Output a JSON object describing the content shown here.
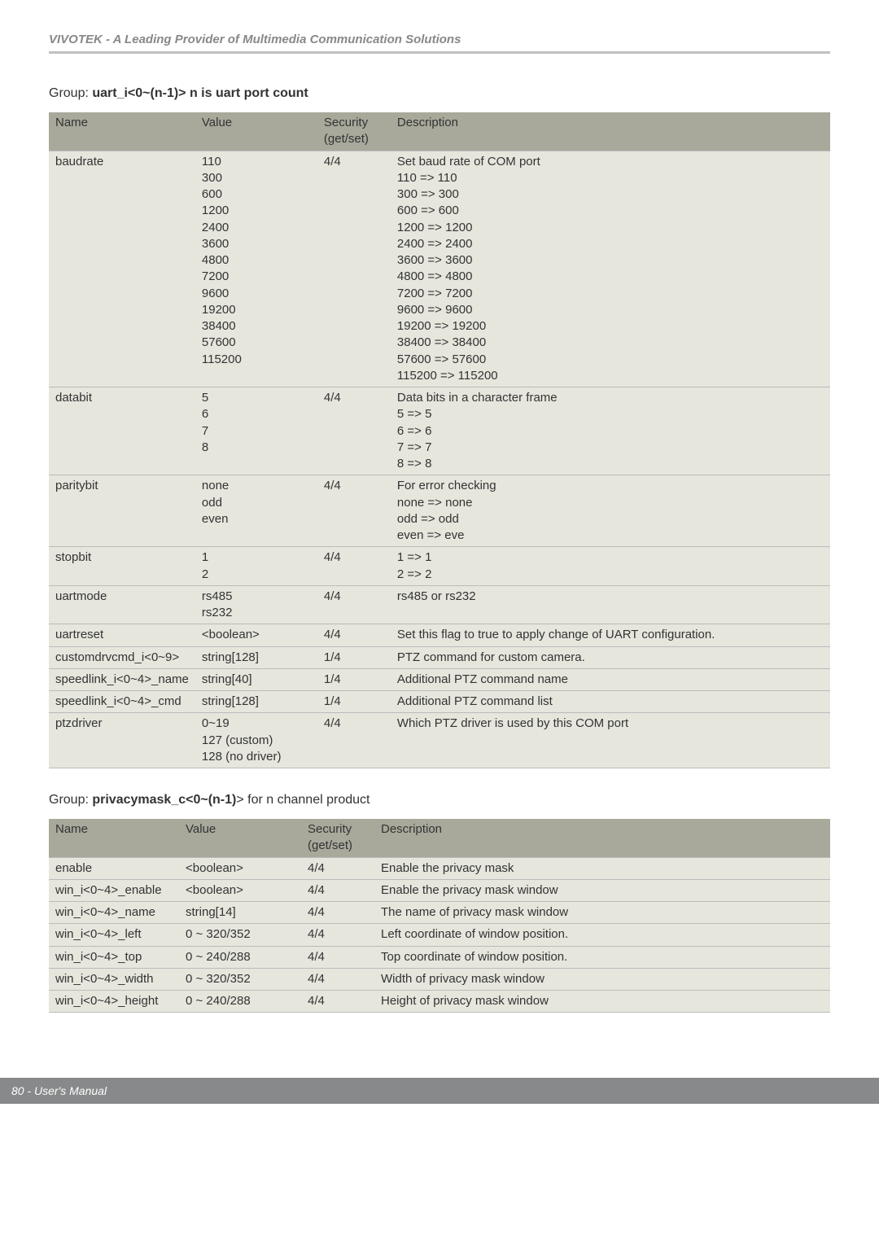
{
  "header": {
    "title": "VIVOTEK - A Leading Provider of Multimedia Communication Solutions"
  },
  "footer": {
    "text": "80 - User's Manual"
  },
  "tables": {
    "uart": {
      "title_prefix": "Group: ",
      "title_bold": "uart_i<0~(n-1)> n is uart port count",
      "title_suffix": "",
      "headers": {
        "name": "Name",
        "value": "Value",
        "security": "Security\n(get/set)",
        "description": "Description"
      },
      "rows": [
        {
          "name": "baudrate",
          "value": "110\n300\n600\n1200\n2400\n3600\n4800\n7200\n9600\n19200\n38400\n57600\n115200",
          "security": "4/4",
          "description": "Set baud rate of COM port\n 110 => 110\n 300 => 300\n 600 => 600\n 1200 => 1200\n 2400 => 2400\n 3600 => 3600\n 4800 => 4800\n 7200 => 7200\n 9600 => 9600\n 19200 => 19200\n 38400 => 38400\n 57600 => 57600\n 115200 => 115200"
        },
        {
          "name": "databit",
          "value": "5\n6\n7\n8",
          "security": "4/4",
          "description": "Data bits in a character frame\n 5 => 5\n 6 => 6\n 7 => 7\n 8 => 8"
        },
        {
          "name": "paritybit",
          "value": "none\nodd\neven",
          "security": "4/4",
          "description": "For error checking\n none => none\n odd => odd\n even => eve"
        },
        {
          "name": "stopbit",
          "value": "1\n2",
          "security": "4/4",
          "description": " 1 => 1\n 2 => 2"
        },
        {
          "name": "uartmode",
          "value": "rs485\nrs232",
          "security": "4/4",
          "description": "rs485 or rs232"
        },
        {
          "name": "uartreset",
          "value": "<boolean>",
          "security": "4/4",
          "description": "Set this flag to true to apply change of UART configuration."
        },
        {
          "name": "customdrvcmd_i<0~9>",
          "value": "string[128]",
          "security": "1/4",
          "description": "PTZ command for custom camera."
        },
        {
          "name": "speedlink_i<0~4>_name",
          "value": "string[40]",
          "security": "1/4",
          "description": "Additional PTZ command name"
        },
        {
          "name": "speedlink_i<0~4>_cmd",
          "value": "string[128]",
          "security": "1/4",
          "description": "Additional PTZ command list"
        },
        {
          "name": "ptzdriver",
          "value": "0~19\n127 (custom)\n128 (no driver)",
          "security": "4/4",
          "description": "Which PTZ driver is used by this COM port"
        }
      ]
    },
    "privacymask": {
      "title_prefix": "Group: ",
      "title_bold": "privacymask_c<0~(n-1)",
      "title_suffix": "> for n channel product",
      "headers": {
        "name": "Name",
        "value": "Value",
        "security": "Security\n(get/set)",
        "description": "Description"
      },
      "rows": [
        {
          "name": "enable",
          "value": "<boolean>",
          "security": "4/4",
          "description": "Enable the privacy mask"
        },
        {
          "name": "win_i<0~4>_enable",
          "value": "<boolean>",
          "security": "4/4",
          "description": "Enable the privacy mask window"
        },
        {
          "name": "win_i<0~4>_name",
          "value": "string[14]",
          "security": "4/4",
          "description": "The name of privacy mask window"
        },
        {
          "name": "win_i<0~4>_left",
          "value": "0 ~ 320/352",
          "security": "4/4",
          "description": "Left coordinate of window position."
        },
        {
          "name": "win_i<0~4>_top",
          "value": "0 ~ 240/288",
          "security": "4/4",
          "description": "Top coordinate of window position."
        },
        {
          "name": "win_i<0~4>_width",
          "value": "0 ~ 320/352",
          "security": "4/4",
          "description": "Width of privacy mask window"
        },
        {
          "name": "win_i<0~4>_height",
          "value": "0 ~ 240/288",
          "security": "4/4",
          "description": "Height of privacy mask window"
        }
      ]
    }
  }
}
